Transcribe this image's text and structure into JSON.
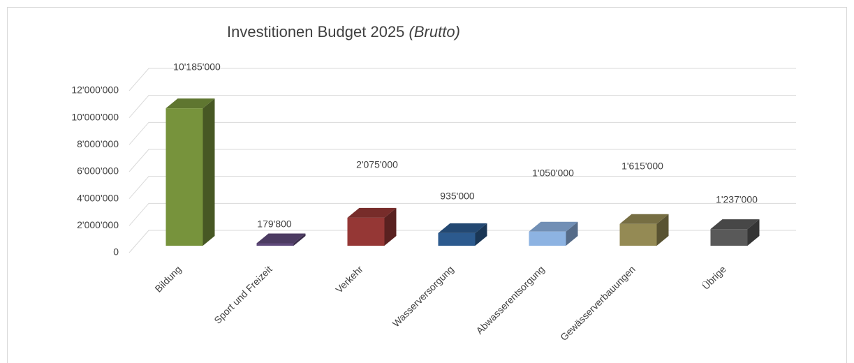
{
  "chart_data": {
    "type": "bar3d",
    "title": "Investitionen Budget 2025",
    "subtitle": "(Brutto)",
    "categories": [
      "Bildung",
      "Sport und Freizeit",
      "Verkehr",
      "Wasserversorgung",
      "Abwasserentsorgung",
      "Gewässerverbauungen",
      "Übrige"
    ],
    "values": [
      10185000,
      179800,
      2075000,
      935000,
      1050000,
      1615000,
      1237000
    ],
    "value_labels": [
      "10'185'000",
      "179'800",
      "2'075'000",
      "935'000",
      "1'050'000",
      "1'615'000",
      "1'237'000"
    ],
    "colors": [
      "#77933c",
      "#5f4a7b",
      "#953735",
      "#2c5a8e",
      "#8db3e2",
      "#948a54",
      "#595959"
    ],
    "ylim": [
      0,
      12000000
    ],
    "yticks": [
      0,
      {
        "value": 2000000,
        "label": "2'000'000"
      },
      {
        "value": 4000000,
        "label": "4'000'000"
      },
      {
        "value": 6000000,
        "label": "6'000'000"
      },
      {
        "value": 8000000,
        "label": "8'000'000"
      },
      {
        "value": 10000000,
        "label": "10'000'000"
      },
      {
        "value": 12000000,
        "label": "12'000'000"
      }
    ],
    "grid": true
  }
}
